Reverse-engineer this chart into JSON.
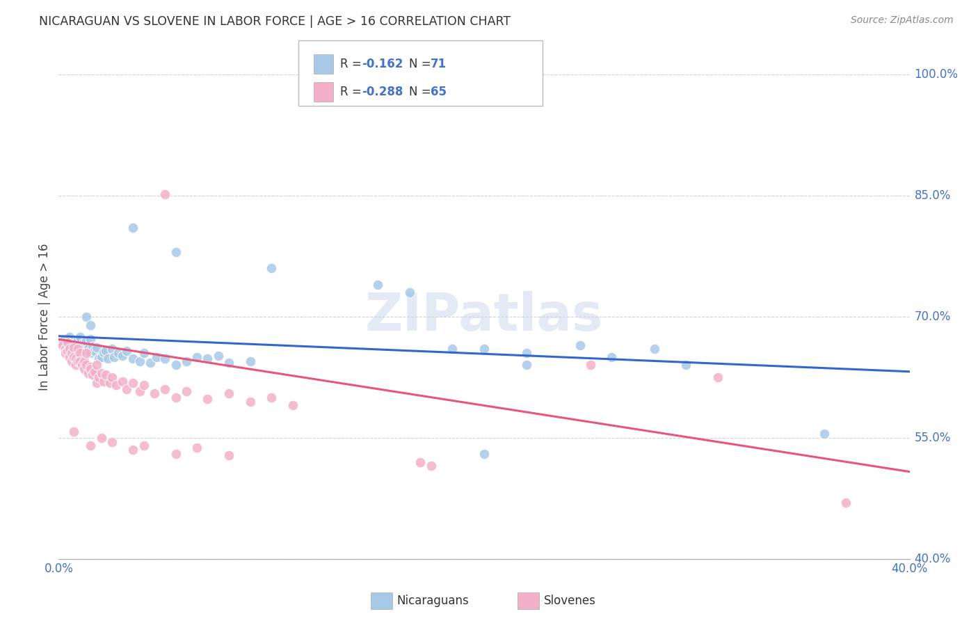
{
  "title": "NICARAGUAN VS SLOVENE IN LABOR FORCE | AGE > 16 CORRELATION CHART",
  "source": "Source: ZipAtlas.com",
  "ylabel": "In Labor Force | Age > 16",
  "watermark": "ZIPatlas",
  "xmin": 0.0,
  "xmax": 0.4,
  "ymin": 0.4,
  "ymax": 1.0,
  "yticks": [
    0.4,
    0.55,
    0.7,
    0.85,
    1.0
  ],
  "xticks": [
    0.0,
    0.1,
    0.2,
    0.3,
    0.4
  ],
  "ytick_labels": [
    "40.0%",
    "55.0%",
    "70.0%",
    "85.0%",
    "100.0%"
  ],
  "xtick_labels": [
    "0.0%",
    "",
    "",
    "",
    "40.0%"
  ],
  "blue_color": "#a8c8e8",
  "pink_color": "#f4afc8",
  "blue_line_color": "#3366cc",
  "pink_line_color": "#e8557a",
  "blue_scatter": [
    [
      0.002,
      0.668
    ],
    [
      0.003,
      0.672
    ],
    [
      0.003,
      0.66
    ],
    [
      0.004,
      0.673
    ],
    [
      0.004,
      0.665
    ],
    [
      0.005,
      0.668
    ],
    [
      0.005,
      0.675
    ],
    [
      0.006,
      0.662
    ],
    [
      0.006,
      0.658
    ],
    [
      0.007,
      0.67
    ],
    [
      0.007,
      0.666
    ],
    [
      0.008,
      0.665
    ],
    [
      0.008,
      0.66
    ],
    [
      0.009,
      0.668
    ],
    [
      0.009,
      0.672
    ],
    [
      0.01,
      0.675
    ],
    [
      0.01,
      0.66
    ],
    [
      0.011,
      0.662
    ],
    [
      0.012,
      0.658
    ],
    [
      0.012,
      0.668
    ],
    [
      0.013,
      0.67
    ],
    [
      0.014,
      0.66
    ],
    [
      0.015,
      0.655
    ],
    [
      0.015,
      0.672
    ],
    [
      0.016,
      0.663
    ],
    [
      0.017,
      0.658
    ],
    [
      0.018,
      0.662
    ],
    [
      0.019,
      0.648
    ],
    [
      0.02,
      0.65
    ],
    [
      0.021,
      0.656
    ],
    [
      0.022,
      0.658
    ],
    [
      0.023,
      0.648
    ],
    [
      0.025,
      0.66
    ],
    [
      0.026,
      0.65
    ],
    [
      0.028,
      0.655
    ],
    [
      0.03,
      0.652
    ],
    [
      0.032,
      0.658
    ],
    [
      0.035,
      0.648
    ],
    [
      0.038,
      0.645
    ],
    [
      0.04,
      0.655
    ],
    [
      0.043,
      0.643
    ],
    [
      0.046,
      0.65
    ],
    [
      0.05,
      0.648
    ],
    [
      0.055,
      0.64
    ],
    [
      0.06,
      0.645
    ],
    [
      0.065,
      0.65
    ],
    [
      0.07,
      0.648
    ],
    [
      0.075,
      0.652
    ],
    [
      0.08,
      0.643
    ],
    [
      0.09,
      0.645
    ],
    [
      0.013,
      0.7
    ],
    [
      0.015,
      0.69
    ],
    [
      0.035,
      0.81
    ],
    [
      0.055,
      0.78
    ],
    [
      0.1,
      0.76
    ],
    [
      0.15,
      0.74
    ],
    [
      0.165,
      0.73
    ],
    [
      0.185,
      0.66
    ],
    [
      0.2,
      0.66
    ],
    [
      0.22,
      0.655
    ],
    [
      0.245,
      0.665
    ],
    [
      0.28,
      0.66
    ],
    [
      0.22,
      0.64
    ],
    [
      0.26,
      0.65
    ],
    [
      0.295,
      0.64
    ],
    [
      0.2,
      0.53
    ],
    [
      0.36,
      0.555
    ]
  ],
  "pink_scatter": [
    [
      0.002,
      0.665
    ],
    [
      0.003,
      0.66
    ],
    [
      0.003,
      0.655
    ],
    [
      0.004,
      0.668
    ],
    [
      0.004,
      0.658
    ],
    [
      0.005,
      0.65
    ],
    [
      0.005,
      0.66
    ],
    [
      0.006,
      0.655
    ],
    [
      0.006,
      0.645
    ],
    [
      0.007,
      0.662
    ],
    [
      0.007,
      0.65
    ],
    [
      0.008,
      0.648
    ],
    [
      0.008,
      0.64
    ],
    [
      0.009,
      0.645
    ],
    [
      0.009,
      0.66
    ],
    [
      0.01,
      0.655
    ],
    [
      0.01,
      0.645
    ],
    [
      0.011,
      0.64
    ],
    [
      0.012,
      0.635
    ],
    [
      0.012,
      0.645
    ],
    [
      0.013,
      0.655
    ],
    [
      0.013,
      0.64
    ],
    [
      0.014,
      0.63
    ],
    [
      0.015,
      0.638
    ],
    [
      0.015,
      0.635
    ],
    [
      0.016,
      0.628
    ],
    [
      0.017,
      0.632
    ],
    [
      0.018,
      0.64
    ],
    [
      0.018,
      0.618
    ],
    [
      0.019,
      0.625
    ],
    [
      0.02,
      0.63
    ],
    [
      0.021,
      0.62
    ],
    [
      0.022,
      0.628
    ],
    [
      0.024,
      0.618
    ],
    [
      0.025,
      0.625
    ],
    [
      0.027,
      0.615
    ],
    [
      0.03,
      0.62
    ],
    [
      0.032,
      0.61
    ],
    [
      0.035,
      0.618
    ],
    [
      0.038,
      0.608
    ],
    [
      0.04,
      0.615
    ],
    [
      0.045,
      0.605
    ],
    [
      0.05,
      0.61
    ],
    [
      0.055,
      0.6
    ],
    [
      0.06,
      0.608
    ],
    [
      0.07,
      0.598
    ],
    [
      0.08,
      0.605
    ],
    [
      0.09,
      0.595
    ],
    [
      0.1,
      0.6
    ],
    [
      0.11,
      0.59
    ],
    [
      0.007,
      0.558
    ],
    [
      0.015,
      0.54
    ],
    [
      0.02,
      0.55
    ],
    [
      0.025,
      0.545
    ],
    [
      0.035,
      0.535
    ],
    [
      0.04,
      0.54
    ],
    [
      0.055,
      0.53
    ],
    [
      0.065,
      0.538
    ],
    [
      0.08,
      0.528
    ],
    [
      0.05,
      0.852
    ],
    [
      0.17,
      0.52
    ],
    [
      0.175,
      0.515
    ],
    [
      0.25,
      0.64
    ],
    [
      0.31,
      0.625
    ],
    [
      0.37,
      0.47
    ]
  ],
  "blue_trendline": [
    [
      0.0,
      0.676
    ],
    [
      0.4,
      0.632
    ]
  ],
  "pink_trendline": [
    [
      0.0,
      0.672
    ],
    [
      0.4,
      0.508
    ]
  ]
}
